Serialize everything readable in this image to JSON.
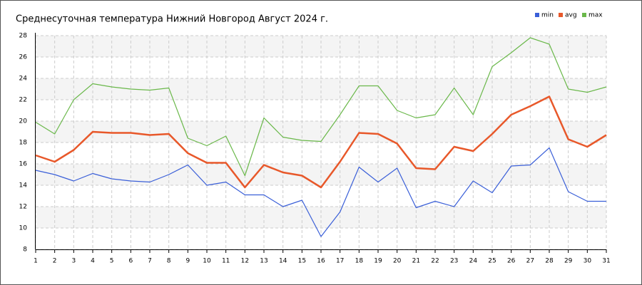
{
  "chart_data": {
    "type": "line",
    "title": "Среднесуточная температура Нижний Новгород  Август 2024 г.",
    "x": [
      1,
      2,
      3,
      4,
      5,
      6,
      7,
      8,
      9,
      10,
      11,
      12,
      13,
      14,
      15,
      16,
      17,
      18,
      19,
      20,
      21,
      22,
      23,
      24,
      25,
      26,
      27,
      28,
      29,
      30,
      31
    ],
    "xlim": [
      1,
      31
    ],
    "xticks": [
      1,
      2,
      3,
      4,
      5,
      6,
      7,
      8,
      9,
      10,
      11,
      12,
      13,
      14,
      15,
      16,
      17,
      18,
      19,
      20,
      21,
      22,
      23,
      24,
      25,
      26,
      27,
      28,
      29,
      30,
      31
    ],
    "ylim": [
      8,
      28
    ],
    "yticks": [
      8,
      10,
      12,
      14,
      16,
      18,
      20,
      22,
      24,
      26,
      28
    ],
    "grid": true,
    "legend": "top-right",
    "series": [
      {
        "name": "min",
        "color": "#3a5fd8",
        "values": [
          15.4,
          15,
          14.4,
          15.1,
          14.6,
          14.4,
          14.3,
          15,
          15.9,
          14,
          14.3,
          13.1,
          13.1,
          12,
          12.6,
          9.2,
          11.5,
          15.7,
          14.3,
          15.6,
          11.9,
          12.5,
          12,
          14.4,
          13.3,
          15.8,
          15.9,
          17.5,
          13.4,
          12.5,
          12.5
        ]
      },
      {
        "name": "avg",
        "color": "#e8582a",
        "values": [
          16.8,
          16.2,
          17.3,
          19,
          18.9,
          18.9,
          18.7,
          18.8,
          17,
          16.1,
          16.1,
          13.8,
          15.9,
          15.2,
          14.9,
          13.8,
          16.2,
          18.9,
          18.8,
          17.9,
          15.6,
          15.5,
          17.6,
          17.2,
          18.8,
          20.6,
          21.4,
          22.3,
          18.3,
          17.6,
          18.7
        ]
      },
      {
        "name": "max",
        "color": "#6ab84a",
        "values": [
          19.9,
          18.8,
          22,
          23.5,
          23.2,
          23,
          22.9,
          23.1,
          18.4,
          17.7,
          18.6,
          14.9,
          20.3,
          18.5,
          18.2,
          18.1,
          20.6,
          23.3,
          23.3,
          21,
          20.3,
          20.6,
          23.1,
          20.6,
          25.1,
          26.4,
          27.8,
          27.2,
          23,
          22.7,
          23.2
        ]
      }
    ]
  }
}
